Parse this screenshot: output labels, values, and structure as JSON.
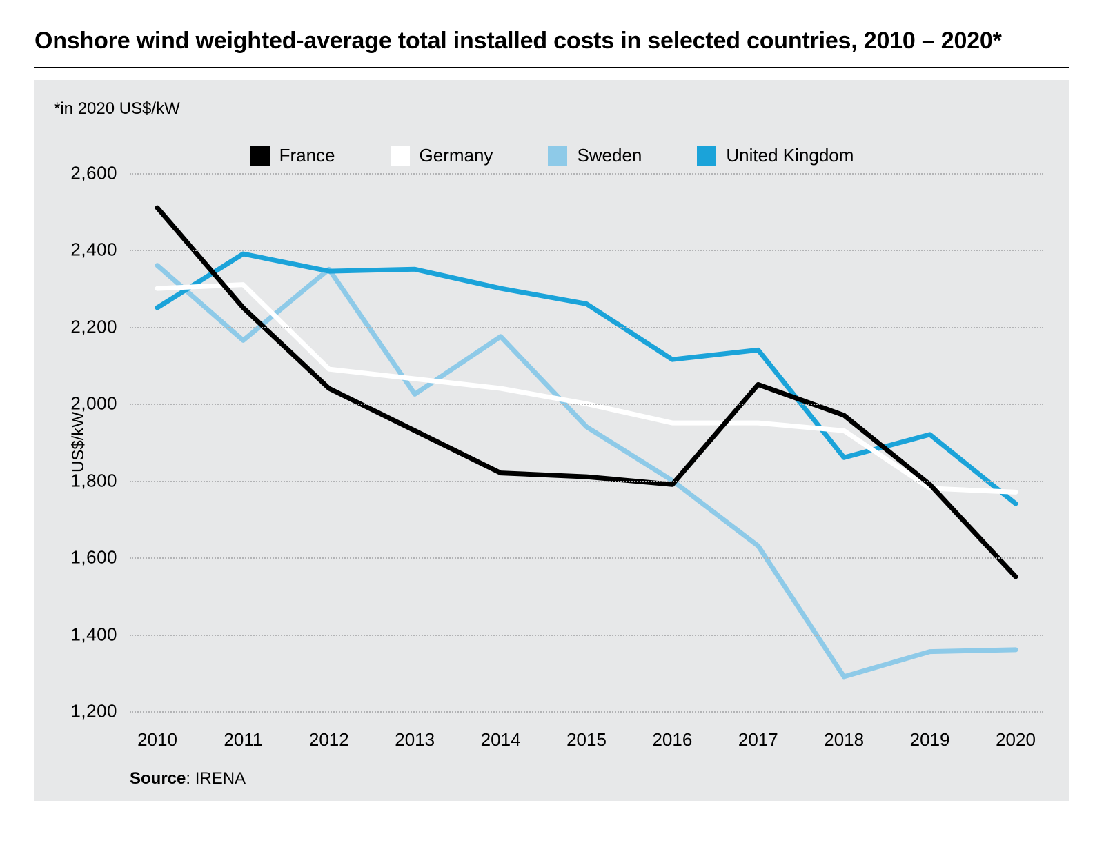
{
  "title": "Onshore wind weighted-average total installed costs in selected countries, 2010 – 2020*",
  "subtitle": "*in 2020 US$/kW",
  "ylabel": "US$/kW",
  "source_label": "Source",
  "source_value": "IRENA",
  "background_color": "#e7e8e9",
  "grid_color": "#b2b3b5",
  "title_fontsize": 34,
  "label_fontsize": 24,
  "tick_fontsize": 26,
  "chart": {
    "type": "line",
    "ylim": [
      1200,
      2600
    ],
    "ytick_step": 200,
    "yticks": [
      1200,
      1400,
      1600,
      1800,
      2000,
      2200,
      2400,
      2600
    ],
    "ytick_labels": [
      "1,200",
      "1,400",
      "1,600",
      "1,800",
      "2,000",
      "2,200",
      "2,400",
      "2,600"
    ],
    "xcategories": [
      "2010",
      "2011",
      "2012",
      "2013",
      "2014",
      "2015",
      "2016",
      "2017",
      "2018",
      "2019",
      "2020"
    ],
    "line_width": 7,
    "series": [
      {
        "name": "France",
        "color": "#000000",
        "values": [
          2510,
          2250,
          2040,
          1930,
          1820,
          1810,
          1790,
          2050,
          1970,
          1790,
          1550
        ]
      },
      {
        "name": "Germany",
        "color": "#ffffff",
        "values": [
          2300,
          2310,
          2090,
          2065,
          2040,
          2000,
          1950,
          1950,
          1930,
          1780,
          1770
        ]
      },
      {
        "name": "Sweden",
        "color": "#8ecae8",
        "values": [
          2360,
          2165,
          2350,
          2025,
          2175,
          1940,
          1800,
          1630,
          1290,
          1355,
          1360
        ]
      },
      {
        "name": "United Kingdom",
        "color": "#1ba3d9",
        "values": [
          2250,
          2390,
          2345,
          2350,
          2300,
          2260,
          2115,
          2140,
          1860,
          1920,
          1740
        ]
      }
    ]
  }
}
